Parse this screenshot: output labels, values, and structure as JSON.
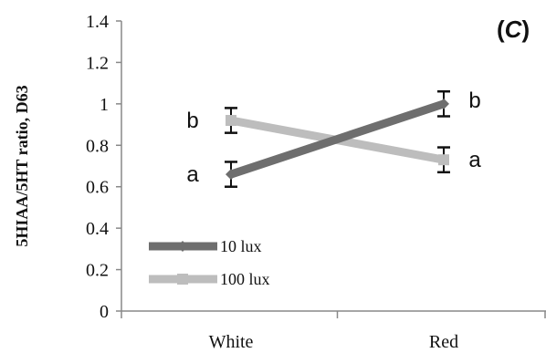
{
  "chart_data": {
    "type": "line",
    "panel_label": {
      "open": "(",
      "letter": "C",
      "close": ")"
    },
    "ylabel": "5HIAA/5HT ratio, D63",
    "categories": [
      "White",
      "Red"
    ],
    "ylim": [
      0,
      1.4
    ],
    "yticks": [
      "0",
      "0.2",
      "0.4",
      "0.6",
      "0.8",
      "1",
      "1.2",
      "1.4"
    ],
    "legend_position": "bottom-left",
    "series": [
      {
        "name": "10 lux",
        "color": "#6e6e6e",
        "marker": "diamond",
        "values": [
          0.66,
          1.0
        ],
        "errors": [
          0.06,
          0.06
        ],
        "sig": [
          "a",
          "b"
        ]
      },
      {
        "name": "100 lux",
        "color": "#bdbdbd",
        "marker": "square",
        "values": [
          0.92,
          0.73
        ],
        "errors": [
          0.06,
          0.06
        ],
        "sig": [
          "b",
          "a"
        ]
      }
    ]
  }
}
